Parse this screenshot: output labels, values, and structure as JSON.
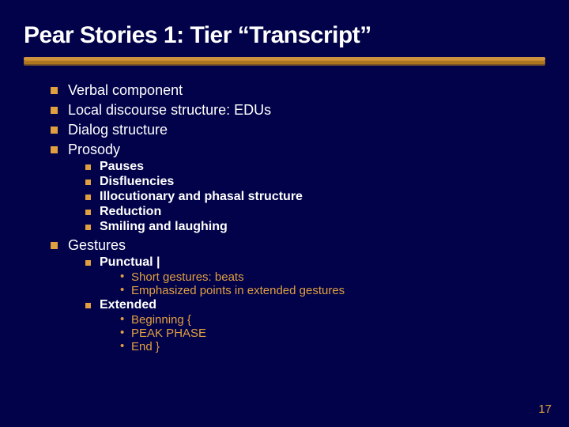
{
  "slide": {
    "title": "Pear Stories 1: Tier “Transcript”",
    "title_fontsize": 30,
    "title_color": "#ffffff",
    "background_color": "#02024a",
    "accent_color": "#e0a040",
    "body_font": "Verdana",
    "title_font": "Arial Black",
    "page_number": "17",
    "lvl1_fontsize": 18,
    "lvl2_fontsize": 16,
    "lvl3_fontsize": 15,
    "bullets": {
      "b1": "Verbal component",
      "b2": "Local discourse structure: EDUs",
      "b3": "Dialog structure",
      "b4": "Prosody",
      "b4_sub": {
        "s1": "Pauses",
        "s2": "Disfluencies",
        "s3": "Illocutionary and phasal structure",
        "s4": "Reduction",
        "s5": "Smiling and laughing"
      },
      "b5": "Gestures",
      "b5_sub": {
        "s1": "Punctual |",
        "s1_sub": {
          "t1": "Short gestures: beats",
          "t2": "Emphasized points in extended gestures"
        },
        "s2": "Extended",
        "s2_sub": {
          "t1": "Beginning {",
          "t2": "PEAK PHASE",
          "t3": "End }"
        }
      }
    }
  }
}
